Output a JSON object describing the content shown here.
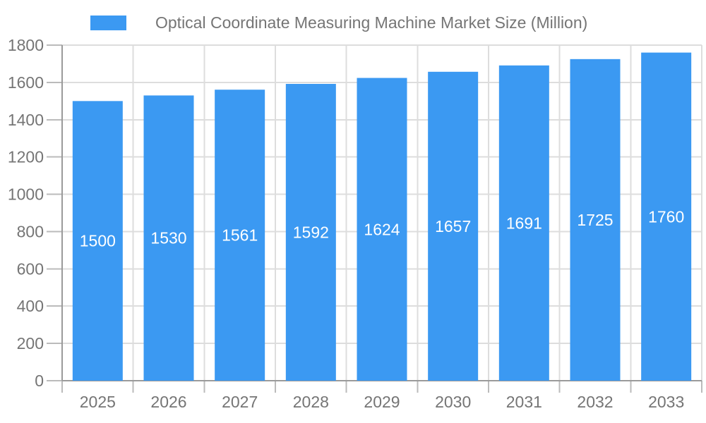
{
  "legend": {
    "label": "Optical Coordinate Measuring Machine Market Size (Million)"
  },
  "chart_data": {
    "type": "bar",
    "title": "Optical Coordinate Measuring Machine Market Size (Million)",
    "categories": [
      "2025",
      "2026",
      "2027",
      "2028",
      "2029",
      "2030",
      "2031",
      "2032",
      "2033"
    ],
    "values": [
      1500,
      1530,
      1561,
      1592,
      1624,
      1657,
      1691,
      1725,
      1760
    ],
    "xlabel": "",
    "ylabel": "",
    "ylim": [
      0,
      1800
    ],
    "ytick_step": 200,
    "yticks": [
      0,
      200,
      400,
      600,
      800,
      1000,
      1200,
      1400,
      1600,
      1800
    ],
    "grid": true,
    "legend_position": "top",
    "bar_labels_inside": true,
    "colors": {
      "bar": "#3B99F2",
      "bar_label": "#FFFFFF",
      "grid": "#DDDDDD",
      "tick": "#BBBBBB",
      "axis": "#9A9A9A",
      "text": "#757575"
    }
  }
}
